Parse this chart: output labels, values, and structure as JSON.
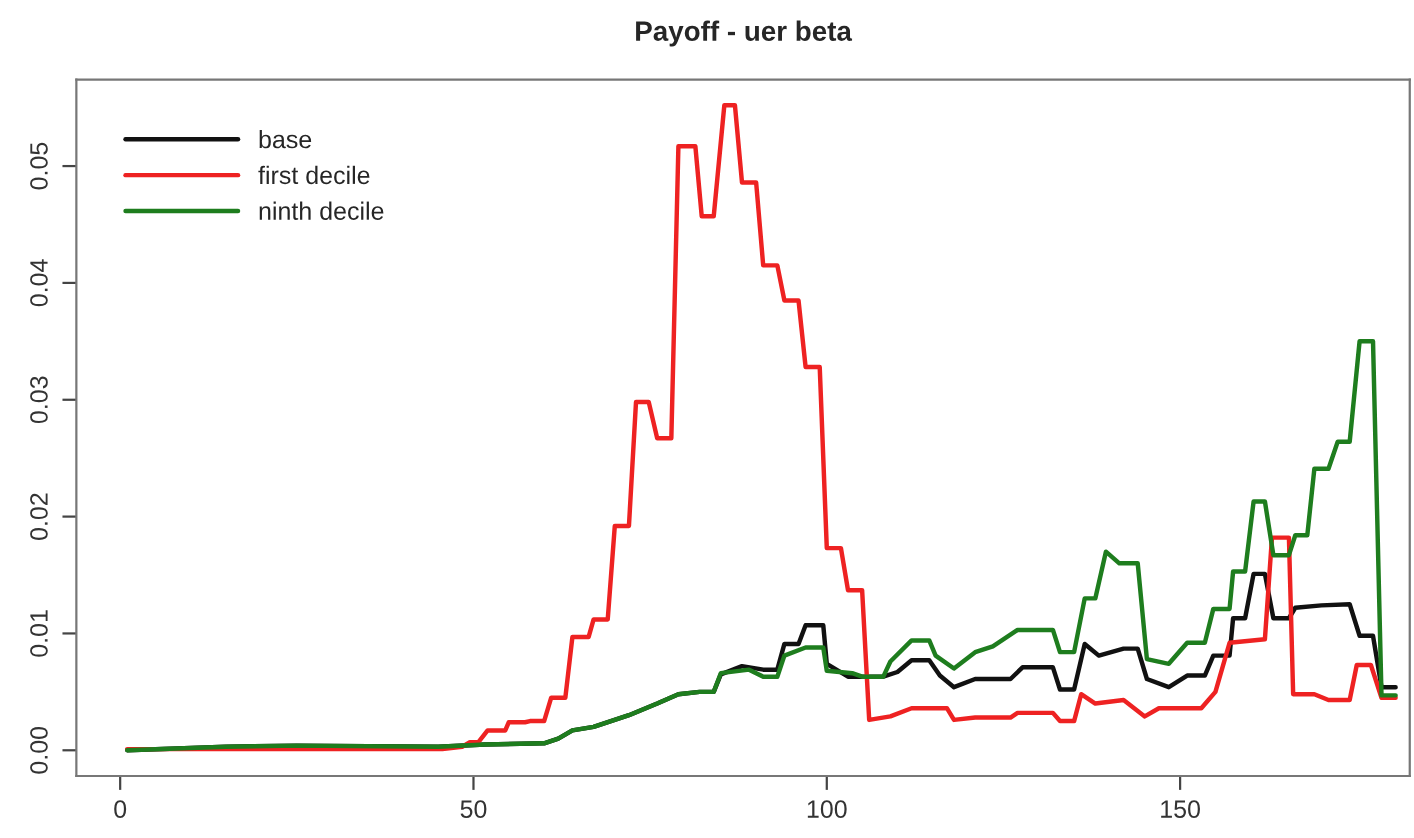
{
  "chart_data": {
    "type": "line",
    "title": "Payoff - uer beta",
    "xlim": [
      -6.2,
      182.5
    ],
    "ylim": [
      -0.0022,
      0.0574
    ],
    "xticks": [
      0,
      50,
      100,
      150
    ],
    "yticks": [
      {
        "value": 0,
        "label": "0.00"
      },
      {
        "value": 0.01,
        "label": "0.01"
      },
      {
        "value": 0.02,
        "label": "0.02"
      },
      {
        "value": 0.03,
        "label": "0.03"
      },
      {
        "value": 0.04,
        "label": "0.04"
      },
      {
        "value": 0.05,
        "label": "0.05"
      }
    ],
    "grid": false,
    "legend": "top left",
    "line_style": "solid",
    "marker": "none",
    "series": [
      {
        "name": "base",
        "color": "#111111",
        "x": [
          1,
          15,
          25,
          45,
          51.6,
          60,
          62,
          64,
          67,
          72,
          76,
          79,
          82,
          84,
          85,
          88,
          91,
          93,
          94,
          96,
          97,
          99.5,
          100,
          103,
          108,
          110,
          112,
          114.5,
          116,
          118,
          121,
          126,
          127.7,
          132,
          133,
          135,
          136.5,
          138.5,
          142,
          144,
          145.3,
          148.4,
          151,
          153.5,
          154.7,
          157,
          157.5,
          159.2,
          160.4,
          162,
          163.2,
          165.4,
          166.3,
          170,
          174,
          175.4,
          177.3,
          178.5,
          180.5
        ],
        "values": [
          0,
          0.0003,
          0.0004,
          0.0003,
          0.0005,
          0.0006,
          0.001,
          0.0017,
          0.002,
          0.003,
          0.004,
          0.0048,
          0.005,
          0.005,
          0.0065,
          0.0072,
          0.0069,
          0.0069,
          0.0091,
          0.0091,
          0.0107,
          0.0107,
          0.0074,
          0.0063,
          0.0063,
          0.0067,
          0.0077,
          0.0077,
          0.0064,
          0.0054,
          0.0061,
          0.0061,
          0.0071,
          0.0071,
          0.0052,
          0.0052,
          0.0091,
          0.0081,
          0.0087,
          0.0087,
          0.0061,
          0.0054,
          0.0064,
          0.0064,
          0.0081,
          0.0081,
          0.0113,
          0.0113,
          0.0151,
          0.0151,
          0.0113,
          0.0113,
          0.0122,
          0.0124,
          0.0125,
          0.0098,
          0.0098,
          0.0054,
          0.0054
        ]
      },
      {
        "name": "first decile",
        "color": "#ee2222",
        "x": [
          1,
          45.6,
          48.4,
          49.5,
          50.7,
          52,
          54.5,
          55,
          57.3,
          58,
          60,
          61,
          63,
          64,
          66.3,
          67,
          69,
          70,
          72,
          73,
          74.8,
          76,
          78,
          79,
          81.4,
          82.3,
          84,
          85.5,
          87,
          88,
          90,
          91,
          93,
          94,
          96,
          97,
          99,
          100,
          102,
          103,
          105,
          106,
          109,
          112,
          117,
          118,
          121,
          126,
          127,
          132,
          133,
          135,
          136,
          138,
          142,
          145,
          147,
          153,
          155,
          157,
          162,
          163,
          165.4,
          166,
          169,
          171,
          174,
          175,
          177,
          178.5,
          180.5
        ],
        "values": [
          0.0001,
          0.0001,
          0.0003,
          0.0007,
          0.0007,
          0.0017,
          0.0017,
          0.0024,
          0.0024,
          0.0025,
          0.0025,
          0.0045,
          0.0045,
          0.0097,
          0.0097,
          0.0112,
          0.0112,
          0.0192,
          0.0192,
          0.0298,
          0.0298,
          0.0267,
          0.0267,
          0.0517,
          0.0517,
          0.0457,
          0.0457,
          0.0552,
          0.0552,
          0.0486,
          0.0486,
          0.0415,
          0.0415,
          0.0385,
          0.0385,
          0.0328,
          0.0328,
          0.0173,
          0.0173,
          0.0137,
          0.0137,
          0.0026,
          0.0029,
          0.0036,
          0.0036,
          0.0026,
          0.0028,
          0.0028,
          0.0032,
          0.0032,
          0.0025,
          0.0025,
          0.0048,
          0.004,
          0.0043,
          0.0029,
          0.0036,
          0.0036,
          0.005,
          0.0092,
          0.0095,
          0.0182,
          0.0182,
          0.0048,
          0.0048,
          0.0043,
          0.0043,
          0.0073,
          0.0073,
          0.0045,
          0.0045
        ]
      },
      {
        "name": "ninth decile",
        "color": "#1e7d1e",
        "x": [
          1,
          15,
          25,
          45,
          51.6,
          60,
          62,
          64,
          67,
          72,
          76,
          79,
          82,
          84,
          85,
          89,
          91,
          93,
          94,
          97,
          99.5,
          100,
          103.6,
          105,
          108,
          109,
          112,
          114.5,
          115.4,
          118,
          121,
          123.5,
          127,
          132,
          133,
          135,
          136.5,
          138,
          139.5,
          141.4,
          144,
          145.3,
          148.4,
          151,
          153.5,
          154.7,
          157,
          157.5,
          159.2,
          160.4,
          162,
          163.2,
          165.4,
          166.3,
          168,
          169,
          171,
          172.3,
          174,
          175.4,
          177.3,
          178.5,
          180.5
        ],
        "values": [
          0,
          0.0003,
          0.0004,
          0.0003,
          0.0005,
          0.0006,
          0.001,
          0.0017,
          0.002,
          0.003,
          0.004,
          0.0048,
          0.005,
          0.005,
          0.0066,
          0.0069,
          0.0063,
          0.0063,
          0.0081,
          0.0088,
          0.0088,
          0.0068,
          0.0066,
          0.0063,
          0.0063,
          0.0076,
          0.0094,
          0.0094,
          0.0081,
          0.007,
          0.0084,
          0.0089,
          0.0103,
          0.0103,
          0.0084,
          0.0084,
          0.013,
          0.013,
          0.017,
          0.016,
          0.016,
          0.0078,
          0.0074,
          0.0092,
          0.0092,
          0.0121,
          0.0121,
          0.0153,
          0.0153,
          0.0213,
          0.0213,
          0.0167,
          0.0167,
          0.0184,
          0.0184,
          0.0241,
          0.0241,
          0.0264,
          0.0264,
          0.035,
          0.035,
          0.0047,
          0.0047
        ]
      }
    ]
  }
}
